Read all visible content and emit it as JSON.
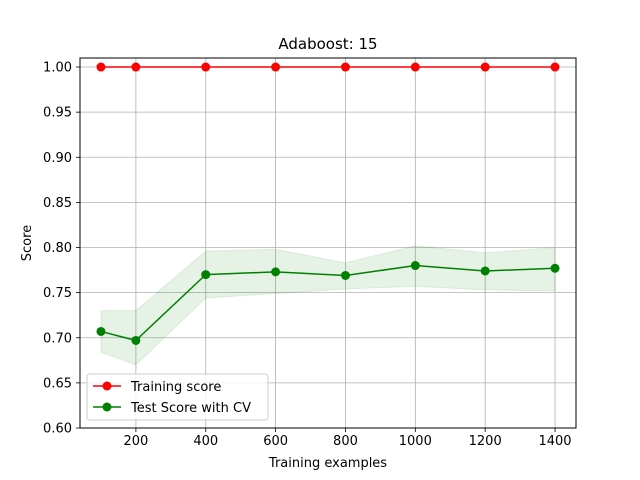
{
  "chart_data": {
    "type": "line",
    "title": "Adaboost: 15",
    "xlabel": "Training examples",
    "ylabel": "Score",
    "x": [
      100,
      200,
      400,
      600,
      800,
      1000,
      1200,
      1400
    ],
    "xlim": [
      40,
      1460
    ],
    "ylim": [
      0.6,
      1.01
    ],
    "xticks": [
      200,
      400,
      600,
      800,
      1000,
      1200,
      1400
    ],
    "yticks": [
      0.6,
      0.65,
      0.7,
      0.75,
      0.8,
      0.85,
      0.9,
      0.95,
      1.0
    ],
    "xtick_labels": [
      "200",
      "400",
      "600",
      "800",
      "1000",
      "1200",
      "1400"
    ],
    "ytick_labels": [
      "0.60",
      "0.65",
      "0.70",
      "0.75",
      "0.80",
      "0.85",
      "0.90",
      "0.95",
      "1.00"
    ],
    "grid": true,
    "legend_position": "lower-left",
    "series": [
      {
        "name": "Training score",
        "color": "#ff0000",
        "values": [
          1.0,
          1.0,
          1.0,
          1.0,
          1.0,
          1.0,
          1.0,
          1.0
        ],
        "band_lower": [
          1.0,
          1.0,
          1.0,
          1.0,
          1.0,
          1.0,
          1.0,
          1.0
        ],
        "band_upper": [
          1.0,
          1.0,
          1.0,
          1.0,
          1.0,
          1.0,
          1.0,
          1.0
        ]
      },
      {
        "name": "Test Score with CV",
        "color": "#008000",
        "values": [
          0.707,
          0.697,
          0.77,
          0.773,
          0.769,
          0.78,
          0.774,
          0.777
        ],
        "band_lower": [
          0.684,
          0.67,
          0.744,
          0.749,
          0.754,
          0.757,
          0.753,
          0.752
        ],
        "band_upper": [
          0.73,
          0.73,
          0.796,
          0.798,
          0.783,
          0.802,
          0.794,
          0.8
        ]
      }
    ]
  }
}
